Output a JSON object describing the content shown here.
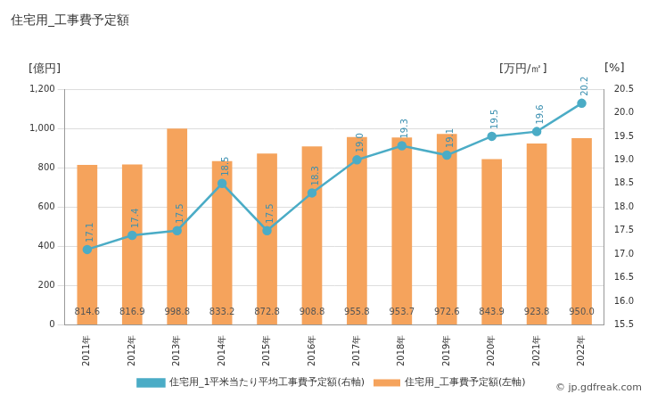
{
  "chart_data": {
    "type": "bar",
    "title": "住宅用_工事費予定額",
    "y_label": "[億円]",
    "y2_label": "[万円/㎡]",
    "annotations": [
      "[%]",
      "© jp.gdfreak.com"
    ],
    "categories": [
      "2011年",
      "2012年",
      "2013年",
      "2014年",
      "2015年",
      "2016年",
      "2017年",
      "2018年",
      "2019年",
      "2020年",
      "2021年",
      "2022年"
    ],
    "series": [
      {
        "name": "住宅用_工事費予定額(左軸)",
        "type": "bar",
        "color": "#f5a35c",
        "values": [
          814.6,
          816.9,
          998.8,
          833.2,
          872.8,
          908.8,
          955.8,
          953.7,
          972.6,
          843.9,
          923.8,
          950.0
        ],
        "value_labels": [
          "814.6",
          "816.9",
          "998.8",
          "833.2",
          "872.8",
          "908.8",
          "955.8",
          "953.7",
          "972.6",
          "843.9",
          "923.8",
          "950.0"
        ]
      },
      {
        "name": "住宅用_1平米当たり平均工事費予定額(右軸)",
        "type": "line",
        "axis": "y2",
        "color": "#4bacc6",
        "marker": "circle",
        "line_style": "solid",
        "values": [
          17.1,
          17.4,
          17.5,
          18.5,
          17.5,
          18.3,
          19.0,
          19.3,
          19.1,
          19.5,
          19.6,
          20.2
        ],
        "value_labels": [
          "17.1",
          "17.4",
          "17.5",
          "18.5",
          "17.5",
          "18.3",
          "19.0",
          "19.3",
          "19.1",
          "19.5",
          "19.6",
          "20.2"
        ]
      }
    ],
    "ylim": [
      0,
      1200
    ],
    "yticks": [
      0,
      200,
      400,
      600,
      800,
      {
        "value": 1000,
        "label": "1,000"
      },
      {
        "value": 1200,
        "label": "1,200"
      }
    ],
    "y2lim": [
      15.5,
      20.5
    ],
    "y2ticks": [
      15.5,
      {
        "value": 16,
        "label": "16.0"
      },
      16.5,
      {
        "value": 17,
        "label": "17.0"
      },
      17.5,
      {
        "value": 18,
        "label": "18.0"
      },
      18.5,
      {
        "value": 19,
        "label": "19.0"
      },
      19.5,
      {
        "value": 20,
        "label": "20.0"
      },
      20.5
    ],
    "grid": true,
    "legend": "bottom",
    "data_labels": true
  }
}
